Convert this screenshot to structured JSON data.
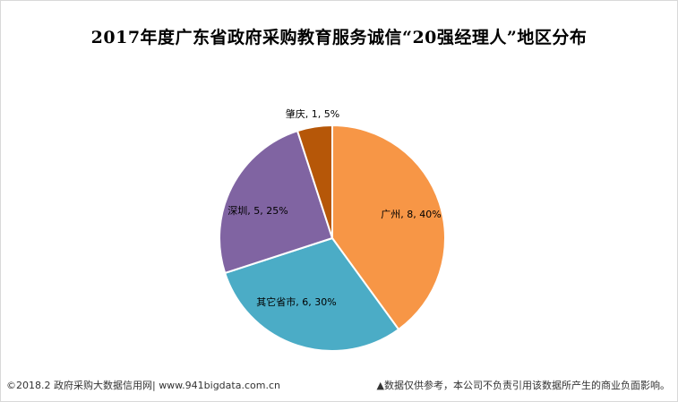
{
  "chart_data": {
    "type": "pie",
    "title": "2017年度广东省政府采购教育服务诚信“20强经理人”地区分布",
    "slices": [
      {
        "label": "广州",
        "value": 8,
        "percent": "40%",
        "color": "#F79646"
      },
      {
        "label": "其它省市",
        "value": 6,
        "percent": "30%",
        "color": "#4BACC6"
      },
      {
        "label": "深圳",
        "value": 5,
        "percent": "25%",
        "color": "#8064A2"
      },
      {
        "label": "肇庆",
        "value": 1,
        "percent": "5%",
        "color": "#B65708"
      }
    ],
    "start_angle_deg": 0,
    "direction": "clockwise"
  },
  "footer": {
    "source": "©2018.2 政府采购大数据信用网| www.941bigdata.com.cn",
    "disclaimer": "▲数据仅供参考，本公司不负责引用该数据所产生的商业负面影响。"
  }
}
